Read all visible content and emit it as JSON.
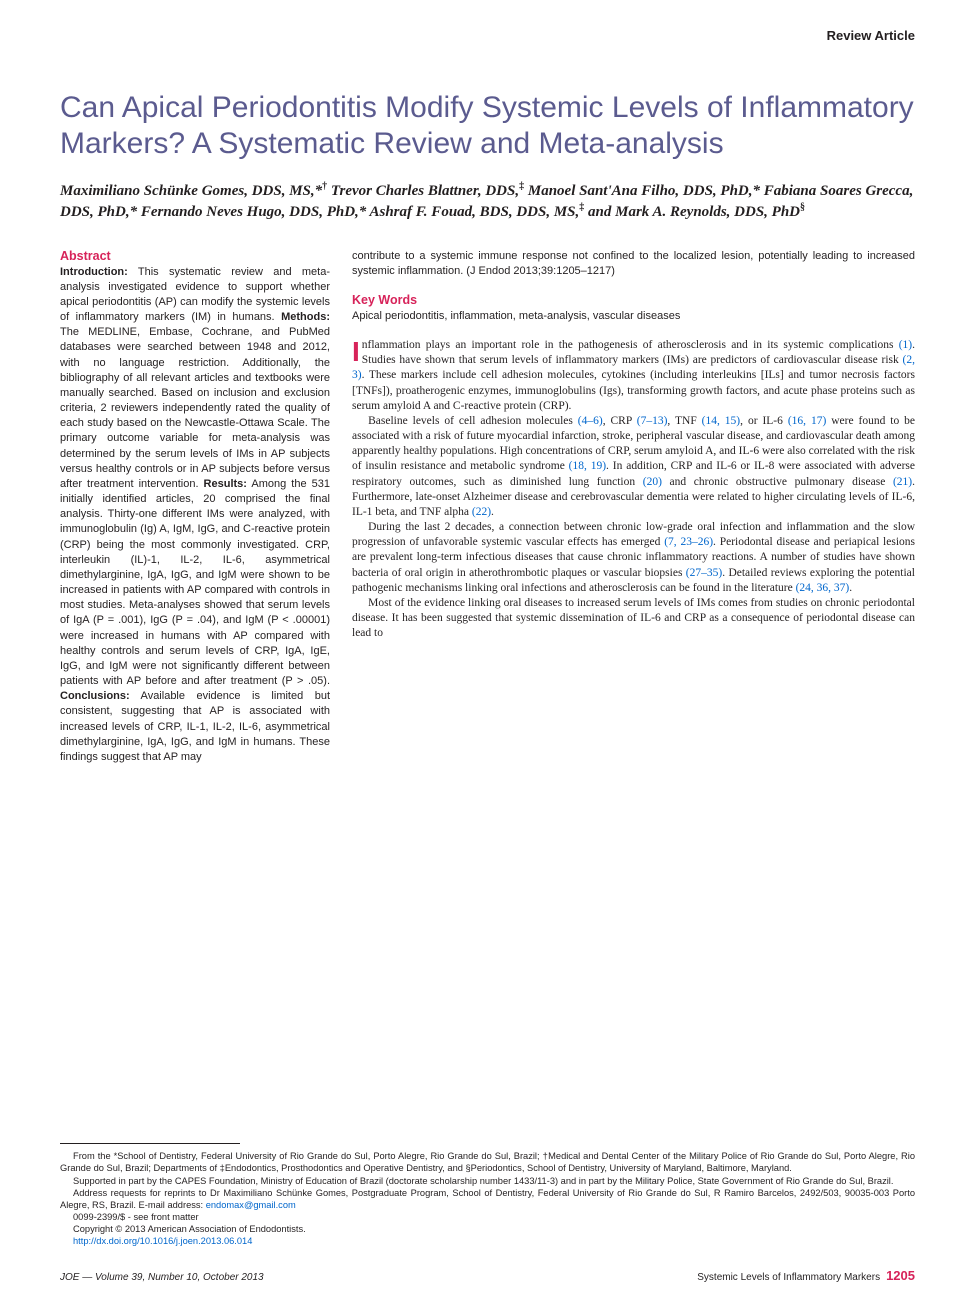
{
  "article_type": "Review Article",
  "title": "Can Apical Periodontitis Modify Systemic Levels of Inflammatory Markers? A Systematic Review and Meta-analysis",
  "authors_html": "Maximiliano Schünke Gomes, DDS, MS,*<sup>†</sup> Trevor Charles Blattner, DDS,<sup>‡</sup> Manoel Sant'Ana Filho, DDS, PhD,* Fabiana Soares Grecca, DDS, PhD,* Fernando Neves Hugo, DDS, PhD,* Ashraf F. Fouad, BDS, DDS, MS,<sup>‡</sup> and Mark A. Reynolds, DDS, PhD<sup>§</sup>",
  "abstract": {
    "heading": "Abstract",
    "intro_label": "Introduction:",
    "intro": " This systematic review and meta-analysis investigated evidence to support whether apical periodontitis (AP) can modify the systemic levels of inflammatory markers (IM) in humans. ",
    "methods_label": "Methods:",
    "methods": " The MEDLINE, Embase, Cochrane, and PubMed databases were searched between 1948 and 2012, with no language restriction. Additionally, the bibliography of all relevant articles and textbooks were manually searched. Based on inclusion and exclusion criteria, 2 reviewers independently rated the quality of each study based on the Newcastle-Ottawa Scale. The primary outcome variable for meta-analysis was determined by the serum levels of IMs in AP subjects versus healthy controls or in AP subjects before versus after treatment intervention. ",
    "results_label": "Results:",
    "results": " Among the 531 initially identified articles, 20 comprised the final analysis. Thirty-one different IMs were analyzed, with immunoglobulin (Ig) A, IgM, IgG, and C-reactive protein (CRP) being the most commonly investigated. CRP, interleukin (IL)-1, IL-2, IL-6, asymmetrical dimethylarginine, IgA, IgG, and IgM were shown to be increased in patients with AP compared with controls in most studies. Meta-analyses showed that serum levels of IgA (P = .001), IgG (P = .04), and IgM (P < .00001) were increased in humans with AP compared with healthy controls and serum levels of CRP, IgA, IgE, IgG, and IgM were not significantly different between patients with AP before and after treatment (P > .05). ",
    "conclusions_label": "Conclusions:",
    "conclusions": " Available evidence is limited but consistent, suggesting that AP is associated with increased levels of CRP, IL-1, IL-2, IL-6, asymmetrical dimethylarginine, IgA, IgG, and IgM in humans. These findings suggest that AP may"
  },
  "right_top": "contribute to a systemic immune response not confined to the localized lesion, potentially leading to increased systemic inflammation. (J Endod 2013;39:1205–1217)",
  "keywords": {
    "heading": "Key Words",
    "body": "Apical periodontitis, inflammation, meta-analysis, vascular diseases"
  },
  "body": {
    "p1": "nflammation plays an important role in the pathogenesis of atherosclerosis and in its systemic complications (1). Studies have shown that serum levels of inflammatory markers (IMs) are predictors of cardiovascular disease risk (2, 3). These markers include cell adhesion molecules, cytokines (including interleukins [ILs] and tumor necrosis factors [TNFs]), proatherogenic enzymes, immunoglobulins (Igs), transforming growth factors, and acute phase proteins such as serum amyloid A and C-reactive protein (CRP).",
    "p2": "Baseline levels of cell adhesion molecules (4–6), CRP (7–13), TNF (14, 15), or IL-6 (16, 17) were found to be associated with a risk of future myocardial infarction, stroke, peripheral vascular disease, and cardiovascular death among apparently healthy populations. High concentrations of CRP, serum amyloid A, and IL-6 were also correlated with the risk of insulin resistance and metabolic syndrome (18, 19). In addition, CRP and IL-6 or IL-8 were associated with adverse respiratory outcomes, such as diminished lung function (20) and chronic obstructive pulmonary disease (21). Furthermore, late-onset Alzheimer disease and cerebrovascular dementia were related to higher circulating levels of IL-6, IL-1 beta, and TNF alpha (22).",
    "p3": "During the last 2 decades, a connection between chronic low-grade oral infection and inflammation and the slow progression of unfavorable systemic vascular effects has emerged (7, 23–26). Periodontal disease and periapical lesions are prevalent long-term infectious diseases that cause chronic inflammatory reactions. A number of studies have shown bacteria of oral origin in atherothrombotic plaques or vascular biopsies (27–35). Detailed reviews exploring the potential pathogenic mechanisms linking oral infections and atherosclerosis can be found in the literature (24, 36, 37).",
    "p4": "Most of the evidence linking oral diseases to increased serum levels of IMs comes from studies on chronic periodontal disease. It has been suggested that systemic dissemination of IL-6 and CRP as a consequence of periodontal disease can lead to"
  },
  "footnotes": {
    "f1": "From the *School of Dentistry, Federal University of Rio Grande do Sul, Porto Alegre, Rio Grande do Sul, Brazil; †Medical and Dental Center of the Military Police of Rio Grande do Sul, Porto Alegre, Rio Grande do Sul, Brazil; Departments of ‡Endodontics, Prosthodontics and Operative Dentistry, and §Periodontics, School of Dentistry, University of Maryland, Baltimore, Maryland.",
    "f2": "Supported in part by the CAPES Foundation, Ministry of Education of Brazil (doctorate scholarship number 1433/11-3) and in part by the Military Police, State Government of Rio Grande do Sul, Brazil.",
    "f3": "Address requests for reprints to Dr Maximiliano Schünke Gomes, Postgraduate Program, School of Dentistry, Federal University of Rio Grande do Sul, R Ramiro Barcelos, 2492/503, 90035-003 Porto Alegre, RS, Brazil. E-mail address: ",
    "f3_email": "endomax@gmail.com",
    "f4": "0099-2399/$ - see front matter",
    "f5": "Copyright © 2013 American Association of Endodontists.",
    "f6": "http://dx.doi.org/10.1016/j.joen.2013.06.014"
  },
  "footer": {
    "left": "JOE — Volume 39, Number 10, October 2013",
    "right_label": "Systemic Levels of Inflammatory Markers",
    "page": "1205"
  },
  "colors": {
    "accent_purple": "#5b5b8f",
    "accent_magenta": "#d7235a",
    "link": "#0066cc",
    "text": "#231f20",
    "background": "#ffffff"
  }
}
